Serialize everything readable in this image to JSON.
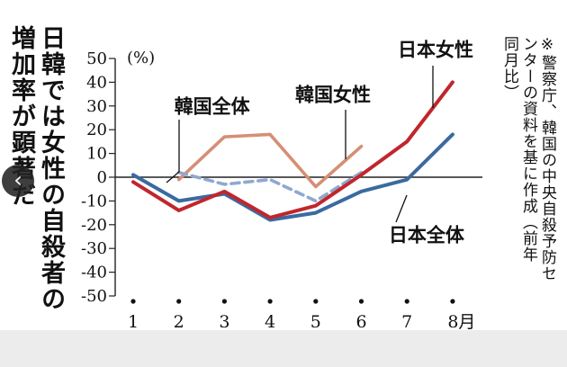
{
  "headline": {
    "line1": "日韓では女性の自殺者の",
    "line2": "増加率が顕著だ"
  },
  "note": {
    "line1": "※警察庁、韓国の中央自殺予防セ",
    "line2": "ンターの資料を基に作成（前年",
    "line3": "同月比）"
  },
  "nav": {
    "prev_icon": "‹"
  },
  "chart_data": {
    "type": "line",
    "title": "日韓では女性の自殺者の増加率が顕著だ",
    "unit_label": "(%)",
    "x": [
      1,
      2,
      3,
      4,
      5,
      6,
      7,
      8
    ],
    "x_tick_labels": [
      "1",
      "2",
      "3",
      "4",
      "5",
      "6",
      "7",
      "8月"
    ],
    "y_ticks": [
      50,
      40,
      30,
      20,
      10,
      0,
      -10,
      -20,
      -30,
      -40,
      -50
    ],
    "ylim": [
      -50,
      50
    ],
    "series": [
      {
        "name": "日本女性",
        "color": "#c0262c",
        "dash": false,
        "values": [
          -2,
          -14,
          -6,
          -17,
          -12,
          1,
          15,
          40
        ]
      },
      {
        "name": "日本全体",
        "color": "#3a6aa0",
        "dash": false,
        "values": [
          1,
          -10,
          -7,
          -18,
          -15,
          -6,
          -1,
          18
        ]
      },
      {
        "name": "韓国女性",
        "color": "#d58f74",
        "dash": false,
        "values": [
          null,
          -1,
          17,
          18,
          -4,
          13,
          null,
          null
        ]
      },
      {
        "name": "韓国全体",
        "color": "#8fa8cf",
        "dash": true,
        "values": [
          null,
          2,
          -3,
          -1,
          -10,
          2,
          null,
          null
        ]
      }
    ],
    "annotations": [
      {
        "text": "韓国全体",
        "x": 1.9,
        "y": 27
      },
      {
        "text": "韓国女性",
        "x": 4.55,
        "y": 32
      },
      {
        "text": "日本女性",
        "x": 6.8,
        "y": 51
      },
      {
        "text": "日本全体",
        "x": 6.6,
        "y": -27
      }
    ]
  }
}
